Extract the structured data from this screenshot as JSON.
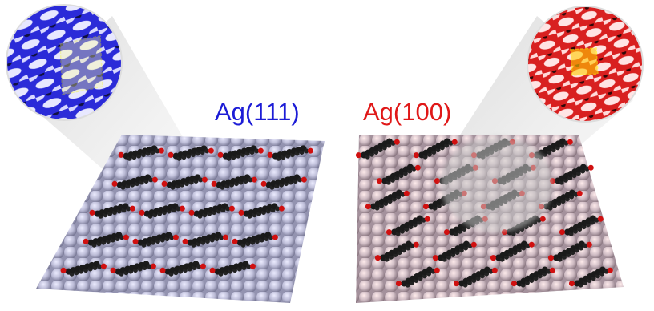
{
  "labels": {
    "left": "Ag(111)",
    "right": "Ag(100)"
  }
}
